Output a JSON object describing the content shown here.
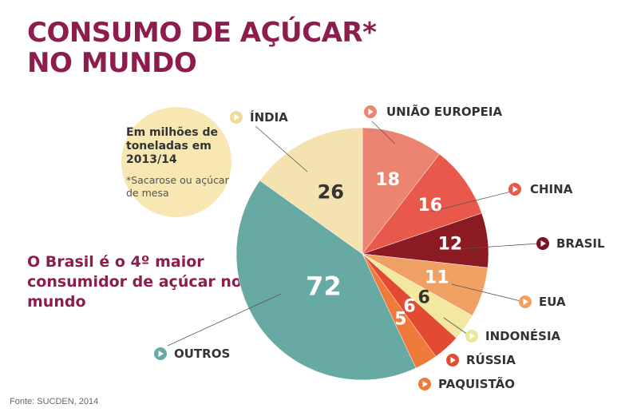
{
  "title": "CONSUMO DE AÇÚCAR* NO MUNDO",
  "title_lines": [
    "CONSUMO DE AÇÚCAR*",
    "NO MUNDO"
  ],
  "note": {
    "unit": "Em milhões de toneladas em 2013/14",
    "footnote": "*Sacarose ou açúcar de mesa"
  },
  "highlight": "O Brasil é o 4º maior consumidor de açúcar no mundo",
  "source": "Fonte: SUCDEN, 2014",
  "chart_data": {
    "type": "pie",
    "unit": "Em milhões de toneladas",
    "start": "top, clockwise",
    "slices": [
      {
        "label": "UNIÃO EUROPEIA",
        "value": 18,
        "color": "#ec8472",
        "marker": "#ec8472",
        "value_color": "#ffffff"
      },
      {
        "label": "CHINA",
        "value": 16,
        "color": "#e8594c",
        "marker": "#e8594c",
        "value_color": "#ffffff"
      },
      {
        "label": "BRASIL",
        "value": 12,
        "color": "#8b1a22",
        "marker": "#7b1226",
        "value_color": "#ffffff"
      },
      {
        "label": "EUA",
        "value": 11,
        "color": "#f1a064",
        "marker": "#f1a064",
        "value_color": "#ffffff"
      },
      {
        "label": "INDONÉSIA",
        "value": 6,
        "color": "#f2e8a0",
        "marker": "#ece59a",
        "value_color": "#333333"
      },
      {
        "label": "RÚSSIA",
        "value": 6,
        "color": "#e24b32",
        "marker": "#e24b32",
        "value_color": "#ffffff"
      },
      {
        "label": "PAQUISTÃO",
        "value": 5,
        "color": "#f07a3a",
        "marker": "#f07a3a",
        "value_color": "#ffffff"
      },
      {
        "label": "OUTROS",
        "value": 72,
        "color": "#67aaa3",
        "marker": "#67aaa3",
        "value_color": "#ffffff"
      },
      {
        "label": "ÍNDIA",
        "value": 26,
        "color": "#f4e3b0",
        "marker": "#f0dc9a",
        "value_color": "#333333"
      }
    ]
  }
}
